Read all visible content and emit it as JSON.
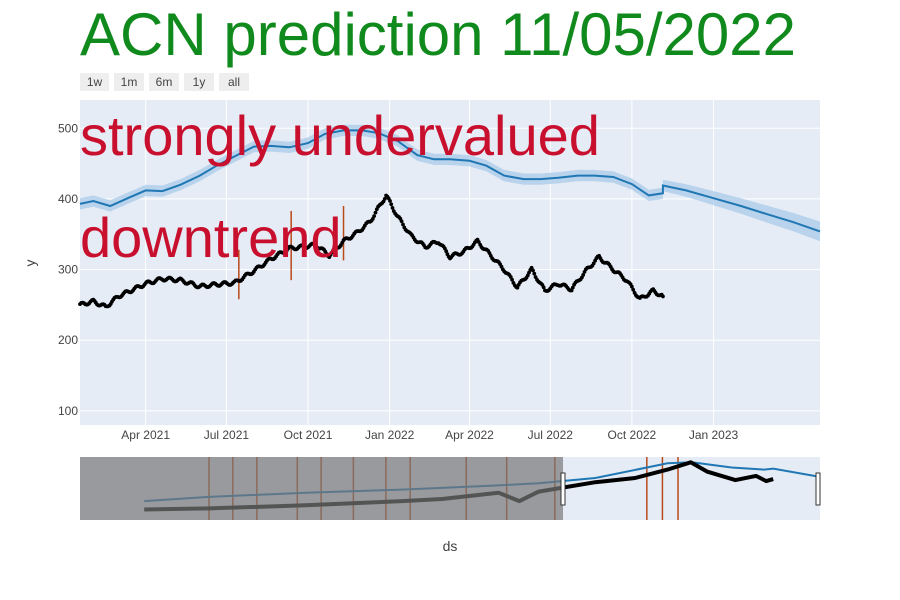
{
  "title": "ACN prediction 11/05/2022",
  "range_selector": [
    "1w",
    "1m",
    "6m",
    "1y",
    "all"
  ],
  "annotations": [
    "strongly undervalued",
    "downtrend"
  ],
  "colors": {
    "title": "#108a1c",
    "annotation": "#c8102e",
    "forecast_line": "#1f77b4",
    "forecast_band": "#a9cbe8",
    "actual_points": "#000000",
    "changepoints": "#b84a1a",
    "plot_bg": "#e5ecf6"
  },
  "chart_data": {
    "type": "line",
    "title": "ACN prediction 11/05/2022",
    "xlabel": "ds",
    "ylabel": "y",
    "x_range": [
      "2021-01-17",
      "2023-05-01"
    ],
    "ylim": [
      80,
      540
    ],
    "y_ticks": [
      100,
      200,
      300,
      400,
      500
    ],
    "x_ticks": [
      {
        "date": "2021-04-01",
        "label": "Apr 2021"
      },
      {
        "date": "2021-07-01",
        "label": "Jul 2021"
      },
      {
        "date": "2021-10-01",
        "label": "Oct 2021"
      },
      {
        "date": "2022-01-01",
        "label": "Jan 2022"
      },
      {
        "date": "2022-04-01",
        "label": "Apr 2022"
      },
      {
        "date": "2022-07-01",
        "label": "Jul 2022"
      },
      {
        "date": "2022-10-01",
        "label": "Oct 2022"
      },
      {
        "date": "2023-01-01",
        "label": "Jan 2023"
      }
    ],
    "grid": true,
    "series": [
      {
        "role": "forecast",
        "x": [
          "2021-01-17",
          "2021-02-01",
          "2021-02-20",
          "2021-03-10",
          "2021-04-01",
          "2021-04-20",
          "2021-05-10",
          "2021-06-01",
          "2021-06-20",
          "2021-07-10",
          "2021-08-01",
          "2021-08-20",
          "2021-09-10",
          "2021-10-01",
          "2021-10-20",
          "2021-11-10",
          "2021-12-01",
          "2021-12-20",
          "2022-01-10",
          "2022-02-01",
          "2022-02-20",
          "2022-03-10",
          "2022-04-01",
          "2022-04-20",
          "2022-05-10",
          "2022-06-01",
          "2022-06-20",
          "2022-07-10",
          "2022-08-01",
          "2022-08-20",
          "2022-09-10",
          "2022-10-01",
          "2022-10-20",
          "2022-11-05",
          "2022-11-05",
          "2022-12-01",
          "2023-01-01",
          "2023-02-01",
          "2023-03-01",
          "2023-04-01",
          "2023-05-01"
        ],
        "y": [
          393,
          397,
          390,
          400,
          412,
          411,
          420,
          433,
          447,
          460,
          474,
          475,
          473,
          479,
          492,
          497,
          497,
          493,
          482,
          462,
          456,
          456,
          454,
          447,
          433,
          428,
          428,
          430,
          433,
          433,
          431,
          421,
          405,
          408,
          419,
          412,
          401,
          390,
          379,
          367,
          354
        ],
        "band": [
          8,
          8,
          8,
          8,
          8,
          8,
          8,
          8,
          8,
          8,
          8,
          8,
          8,
          8,
          8,
          8,
          8,
          8,
          8,
          8,
          8,
          8,
          8,
          8,
          8,
          8,
          8,
          8,
          8,
          8,
          8,
          8,
          8,
          8,
          8,
          9,
          10,
          11,
          12,
          13,
          14
        ]
      },
      {
        "role": "actual",
        "x": [
          "2021-01-17",
          "2021-02-01",
          "2021-02-15",
          "2021-03-01",
          "2021-03-15",
          "2021-04-01",
          "2021-04-20",
          "2021-05-10",
          "2021-06-01",
          "2021-06-20",
          "2021-07-10",
          "2021-08-01",
          "2021-08-20",
          "2021-09-10",
          "2021-09-25",
          "2021-10-10",
          "2021-10-25",
          "2021-11-10",
          "2021-11-25",
          "2021-12-10",
          "2021-12-28",
          "2022-01-10",
          "2022-01-25",
          "2022-02-10",
          "2022-02-25",
          "2022-03-10",
          "2022-03-25",
          "2022-04-10",
          "2022-04-25",
          "2022-05-10",
          "2022-05-25",
          "2022-06-10",
          "2022-06-25",
          "2022-07-10",
          "2022-07-25",
          "2022-08-10",
          "2022-08-25",
          "2022-09-10",
          "2022-09-25",
          "2022-10-10",
          "2022-10-25",
          "2022-11-05"
        ],
        "y": [
          250,
          255,
          247,
          262,
          270,
          280,
          287,
          285,
          276,
          279,
          281,
          298,
          315,
          330,
          332,
          335,
          320,
          340,
          352,
          368,
          405,
          375,
          348,
          332,
          340,
          318,
          325,
          340,
          320,
          300,
          275,
          300,
          270,
          280,
          272,
          298,
          318,
          300,
          285,
          258,
          270,
          262
        ]
      }
    ],
    "changepoints": {
      "dates": [
        "2021-07-15",
        "2021-09-12",
        "2021-11-10"
      ],
      "ranges": [
        [
          258,
          328
        ],
        [
          285,
          383
        ],
        [
          313,
          390
        ]
      ]
    },
    "rangeslider": {
      "x_range": [
        "2015-09-01",
        "2023-05-01"
      ],
      "window": [
        "2020-09-01",
        "2023-05-01"
      ],
      "changepoints": [
        "2017-01-01",
        "2017-04-01",
        "2017-07-01",
        "2017-12-01",
        "2018-03-01",
        "2018-07-01",
        "2018-11-01",
        "2019-02-01",
        "2019-09-01",
        "2020-02-01",
        "2020-08-01",
        "2021-07-15",
        "2021-09-12",
        "2021-11-10"
      ],
      "forecast": {
        "x": [
          "2016-05-01",
          "2017-01-01",
          "2018-01-01",
          "2019-01-01",
          "2020-01-01",
          "2020-06-01",
          "2021-01-01",
          "2021-10-01",
          "2022-01-01",
          "2022-06-01",
          "2022-10-01",
          "2022-11-05",
          "2023-05-01"
        ],
        "y": [
          150,
          170,
          190,
          205,
          225,
          235,
          260,
          330,
          335,
          310,
          300,
          305,
          265
        ]
      },
      "actual": {
        "x": [
          "2016-05-01",
          "2017-01-01",
          "2018-01-01",
          "2019-01-01",
          "2019-06-01",
          "2020-01-01",
          "2020-03-20",
          "2020-06-01",
          "2021-01-01",
          "2021-06-01",
          "2021-10-01",
          "2021-12-28",
          "2022-03-01",
          "2022-06-15",
          "2022-09-01",
          "2022-10-10",
          "2022-11-05"
        ],
        "y": [
          110,
          115,
          130,
          150,
          160,
          190,
          150,
          195,
          240,
          260,
          300,
          335,
          290,
          250,
          270,
          245,
          255
        ]
      }
    }
  }
}
